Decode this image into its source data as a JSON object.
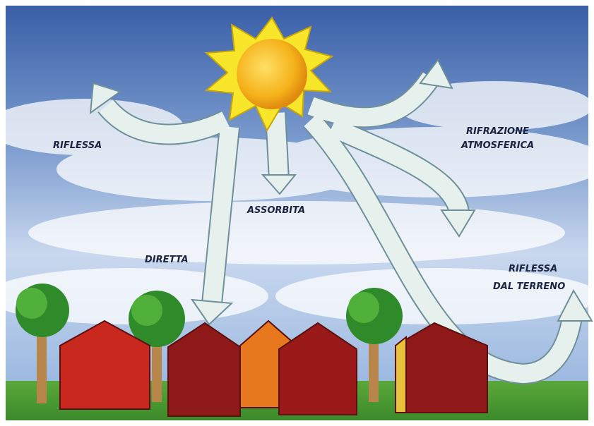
{
  "labels": [
    {
      "lines": [
        "RIFLESSA"
      ]
    },
    {
      "lines": [
        "ASSORBITA"
      ]
    },
    {
      "lines": [
        "DIRETTA"
      ]
    },
    {
      "lines": [
        "RIFRAZIONE",
        "ATMOSFERICA"
      ]
    },
    {
      "lines": [
        "RIFLESSA",
        "DAL TERRENO"
      ]
    }
  ]
}
